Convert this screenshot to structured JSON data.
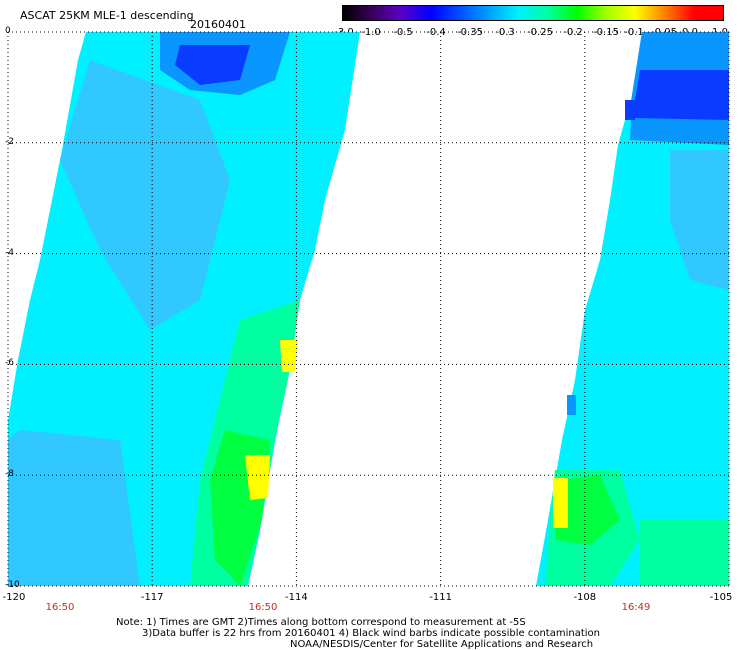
{
  "title": "ASCAT 25KM MLE-1 descending",
  "date": "20160401",
  "colorbar": {
    "labels": [
      "-3.0",
      "-1.0",
      "-0.5",
      "-0.4",
      "-0.35",
      "-0.3",
      "-0.25",
      "-0.2",
      "-0.15",
      "-0.1",
      "-0.05",
      "0.0",
      "1.0"
    ],
    "colors": [
      "#000000",
      "#3a005a",
      "#5a00c8",
      "#0000ff",
      "#0050ff",
      "#00a0ff",
      "#00f0ff",
      "#00ffa0",
      "#00ff00",
      "#a0ff00",
      "#ffff00",
      "#ff8000",
      "#ff0000"
    ]
  },
  "axes": {
    "x_ticks": [
      "-120",
      "-117",
      "-114",
      "-111",
      "-108",
      "-105"
    ],
    "y_ticks": [
      "0",
      "-2",
      "-4",
      "-6",
      "-8",
      "-10"
    ]
  },
  "pass_times": [
    "16:50",
    "16:50",
    "16:49"
  ],
  "notes": {
    "line1": "Note: 1) Times are GMT 2)Times along bottom correspond to measurement at -5S",
    "line2": "3)Data buffer is 22 hrs from 20160401 4) Black wind barbs indicate possible contamination",
    "line3": "NOAA/NESDIS/Center for Satellite Applications and Research"
  },
  "swath_colors": {
    "cyan": "#00f0ff",
    "light_blue": "#30c8ff",
    "mid_blue": "#0a96ff",
    "dark_blue": "#0a3cff",
    "teal_green": "#00ffa0",
    "green": "#00ff40",
    "yellow": "#ffff00"
  }
}
